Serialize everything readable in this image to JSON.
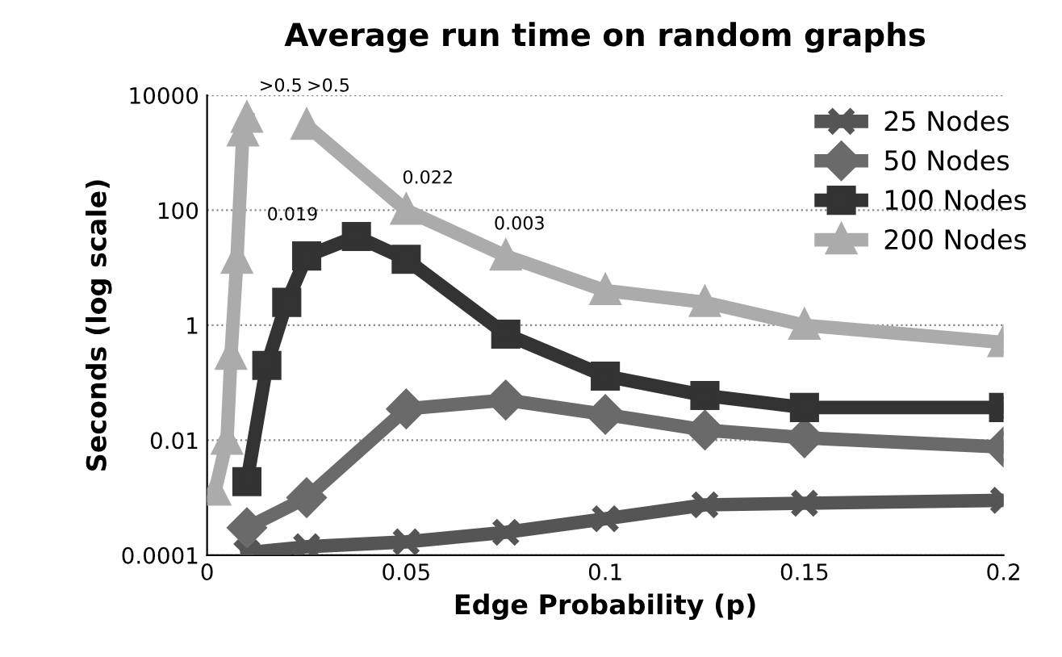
{
  "chart_data": {
    "type": "line",
    "title": "Average run time on random graphs",
    "xlabel": "Edge Probability (p)",
    "ylabel": "Seconds (log scale)",
    "log": "y",
    "xlim": [
      0,
      0.2
    ],
    "xticks": [
      0,
      0.05,
      0.1,
      0.15,
      0.2
    ],
    "ylim": [
      0.0001,
      10000
    ],
    "yticks": [
      0.0001,
      0.01,
      1,
      100,
      10000
    ],
    "grid": "y",
    "legend": "top right",
    "series": [
      {
        "name": "25 Nodes",
        "color": "#555555",
        "marker": "cross",
        "x": [
          0.01,
          0.025,
          0.05,
          0.075,
          0.1,
          0.125,
          0.15,
          0.2
        ],
        "values": [
          0.00011,
          0.00014,
          0.00017,
          0.00025,
          0.00043,
          0.00075,
          0.0008,
          0.0009
        ]
      },
      {
        "name": "50 Nodes",
        "color": "#6a6a6a",
        "marker": "diamond",
        "x": [
          0.01,
          0.025,
          0.05,
          0.075,
          0.1,
          0.125,
          0.15,
          0.2
        ],
        "values": [
          0.0003,
          0.001,
          0.035,
          0.05,
          0.028,
          0.015,
          0.011,
          0.0076
        ]
      },
      {
        "name": "100 Nodes",
        "color": "#333333",
        "marker": "square",
        "x": [
          0.01,
          0.015,
          0.02,
          0.025,
          0.0375,
          0.05,
          0.075,
          0.1,
          0.125,
          0.15,
          0.2
        ],
        "values": [
          0.0019,
          0.2,
          2.5,
          16,
          35,
          14,
          0.7,
          0.13,
          0.06,
          0.037,
          0.037
        ]
      },
      {
        "name": "200 Nodes",
        "color": "#ababab",
        "marker": "triangle",
        "x": [
          0.002,
          0.005,
          0.006,
          0.0075,
          0.009,
          0.01,
          null,
          0.025,
          0.05,
          0.075,
          0.1,
          0.125,
          0.15,
          0.2
        ],
        "values": [
          0.0013,
          0.01,
          0.3,
          14,
          2300,
          4000,
          null,
          3000,
          100,
          16,
          4,
          2.5,
          1,
          0.5
        ]
      }
    ],
    "annotations": [
      ">0.5",
      ">0.5",
      "0.019",
      "0.022",
      "0.003"
    ]
  }
}
